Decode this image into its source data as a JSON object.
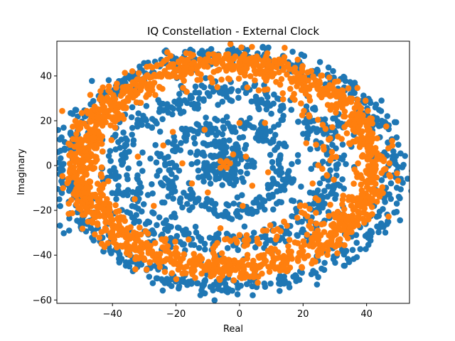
{
  "chart_data": {
    "type": "scatter",
    "title": "IQ Constellation - External Clock",
    "xlabel": "Real",
    "ylabel": "Imaginary",
    "xlim": [
      -57.5,
      53.5
    ],
    "ylim": [
      -61.5,
      55.5
    ],
    "xticks": [
      -40,
      -20,
      0,
      20,
      40
    ],
    "yticks": [
      -60,
      -40,
      -20,
      0,
      20,
      40
    ],
    "grid": false,
    "legend": "none",
    "series": [
      {
        "color": "#1f77b4",
        "rings": [
          {
            "center": [
              -3,
              -2
            ],
            "radius": 52,
            "jitter": 2.5,
            "count": 620
          },
          {
            "center": [
              -4,
              -1
            ],
            "radius": 34,
            "jitter": 3.5,
            "count": 520
          },
          {
            "center": [
              -4,
              -1
            ],
            "radius": 19,
            "jitter": 2.5,
            "count": 280
          },
          {
            "center": [
              -5,
              1
            ],
            "radius": 7,
            "jitter": 2.0,
            "count": 120
          },
          {
            "center": [
              -5,
              1
            ],
            "radius": 0,
            "jitter": 1.2,
            "count": 40
          }
        ]
      },
      {
        "color": "#ff7f0e",
        "rings": [
          {
            "center": [
              -4,
              0
            ],
            "radius": 46,
            "jitter": 3.0,
            "count": 1400
          },
          {
            "center": [
              -10,
              2
            ],
            "radius": 38,
            "jitter": 2.0,
            "count": 150
          }
        ],
        "points": [
          [
            -5,
            1
          ],
          [
            -4,
            2
          ],
          [
            -6,
            -1
          ],
          [
            -5,
            0
          ],
          [
            -4,
            -1
          ],
          [
            -6,
            2
          ],
          [
            -3,
            1
          ],
          [
            -11,
            16
          ],
          [
            0,
            19
          ],
          [
            2,
            4
          ],
          [
            -2,
            5
          ],
          [
            -10,
            -12
          ],
          [
            1,
            -18
          ],
          [
            -7,
            35
          ],
          [
            -18,
            1
          ],
          [
            -24,
            9
          ],
          [
            -21,
            15
          ],
          [
            4,
            -9
          ],
          [
            8,
            19
          ],
          [
            14,
            -25
          ],
          [
            23,
            -8
          ],
          [
            21,
            10
          ],
          [
            -15,
            -8
          ],
          [
            9,
            -3
          ],
          [
            -33,
            -15
          ],
          [
            -27,
            -18
          ],
          [
            -32,
            4
          ],
          [
            -16,
            -33
          ],
          [
            -6,
            -28
          ],
          [
            0,
            -31
          ]
        ]
      }
    ]
  }
}
